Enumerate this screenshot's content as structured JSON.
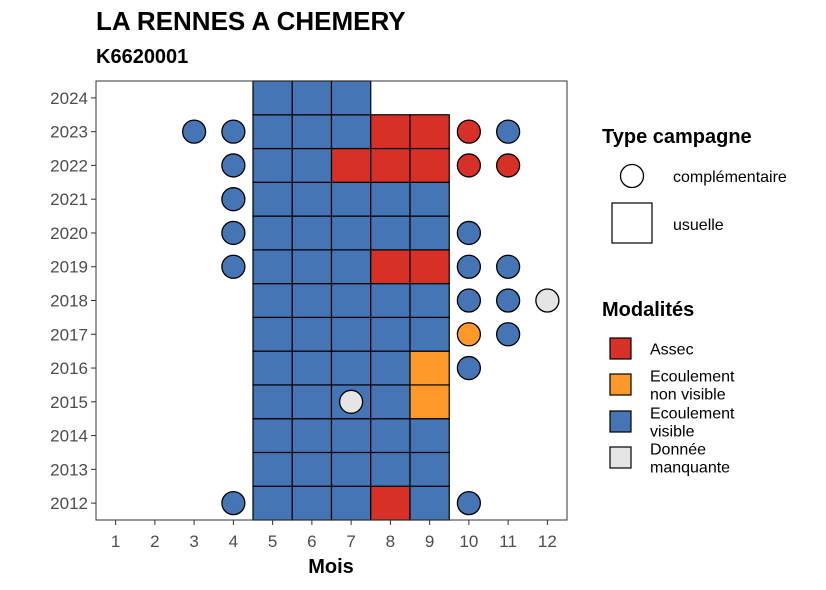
{
  "chart_data": {
    "type": "heatmap",
    "title": "LA RENNES A CHEMERY",
    "subtitle": "K6620001",
    "xlabel": "Mois",
    "ylabel": "",
    "x_ticks": [
      "1",
      "2",
      "3",
      "4",
      "5",
      "6",
      "7",
      "8",
      "9",
      "10",
      "11",
      "12"
    ],
    "y_ticks": [
      "2012",
      "2013",
      "2014",
      "2015",
      "2016",
      "2017",
      "2018",
      "2019",
      "2020",
      "2021",
      "2022",
      "2023",
      "2024"
    ],
    "xlim": [
      0.5,
      12.5
    ],
    "ylim": [
      2011.5,
      2024.5
    ],
    "grid": false,
    "legend_position": "right",
    "legend_shape": {
      "title": "Type campagne",
      "items": [
        {
          "key": "complementaire",
          "label": "complémentaire",
          "shape": "circle"
        },
        {
          "key": "usuelle",
          "label": "usuelle",
          "shape": "square"
        }
      ]
    },
    "legend_color": {
      "title": "Modalités",
      "items": [
        {
          "key": "assec",
          "lines": [
            "Assec"
          ],
          "color": "#d73027"
        },
        {
          "key": "nonvisible",
          "lines": [
            "Ecoulement",
            "non visible"
          ],
          "color": "#fe9929"
        },
        {
          "key": "visible",
          "lines": [
            "Ecoulement",
            "visible"
          ],
          "color": "#4575b4"
        },
        {
          "key": "manquante",
          "lines": [
            "Donnée",
            "manquante"
          ],
          "color": "#e5e5e5"
        }
      ]
    },
    "usuelle": {
      "2012": {
        "5": "visible",
        "6": "visible",
        "7": "visible",
        "8": "assec",
        "9": "visible"
      },
      "2013": {
        "5": "visible",
        "6": "visible",
        "7": "visible",
        "8": "visible",
        "9": "visible"
      },
      "2014": {
        "5": "visible",
        "6": "visible",
        "7": "visible",
        "8": "visible",
        "9": "visible"
      },
      "2015": {
        "5": "visible",
        "6": "visible",
        "7": "visible",
        "8": "visible",
        "9": "nonvisible"
      },
      "2016": {
        "5": "visible",
        "6": "visible",
        "7": "visible",
        "8": "visible",
        "9": "nonvisible"
      },
      "2017": {
        "5": "visible",
        "6": "visible",
        "7": "visible",
        "8": "visible",
        "9": "visible"
      },
      "2018": {
        "5": "visible",
        "6": "visible",
        "7": "visible",
        "8": "visible",
        "9": "visible"
      },
      "2019": {
        "5": "visible",
        "6": "visible",
        "7": "visible",
        "8": "assec",
        "9": "assec"
      },
      "2020": {
        "5": "visible",
        "6": "visible",
        "7": "visible",
        "8": "visible",
        "9": "visible"
      },
      "2021": {
        "5": "visible",
        "6": "visible",
        "7": "visible",
        "8": "visible",
        "9": "visible"
      },
      "2022": {
        "5": "visible",
        "6": "visible",
        "7": "assec",
        "8": "assec",
        "9": "assec"
      },
      "2023": {
        "5": "visible",
        "6": "visible",
        "7": "visible",
        "8": "assec",
        "9": "assec"
      },
      "2024": {
        "5": "visible",
        "6": "visible",
        "7": "visible"
      }
    },
    "complementaire": [
      {
        "year": 2023,
        "month": 3,
        "value": "visible"
      },
      {
        "year": 2023,
        "month": 4,
        "value": "visible"
      },
      {
        "year": 2023,
        "month": 10,
        "value": "assec"
      },
      {
        "year": 2023,
        "month": 11,
        "value": "visible"
      },
      {
        "year": 2022,
        "month": 4,
        "value": "visible"
      },
      {
        "year": 2022,
        "month": 10,
        "value": "assec"
      },
      {
        "year": 2022,
        "month": 11,
        "value": "assec"
      },
      {
        "year": 2021,
        "month": 4,
        "value": "visible"
      },
      {
        "year": 2020,
        "month": 4,
        "value": "visible"
      },
      {
        "year": 2020,
        "month": 10,
        "value": "visible"
      },
      {
        "year": 2019,
        "month": 4,
        "value": "visible"
      },
      {
        "year": 2019,
        "month": 10,
        "value": "visible"
      },
      {
        "year": 2019,
        "month": 11,
        "value": "visible"
      },
      {
        "year": 2018,
        "month": 10,
        "value": "visible"
      },
      {
        "year": 2018,
        "month": 11,
        "value": "visible"
      },
      {
        "year": 2018,
        "month": 12,
        "value": "manquante"
      },
      {
        "year": 2017,
        "month": 10,
        "value": "nonvisible"
      },
      {
        "year": 2017,
        "month": 11,
        "value": "visible"
      },
      {
        "year": 2016,
        "month": 10,
        "value": "visible"
      },
      {
        "year": 2015,
        "month": 7,
        "value": "manquante"
      },
      {
        "year": 2012,
        "month": 4,
        "value": "visible"
      },
      {
        "year": 2012,
        "month": 10,
        "value": "visible"
      }
    ]
  }
}
